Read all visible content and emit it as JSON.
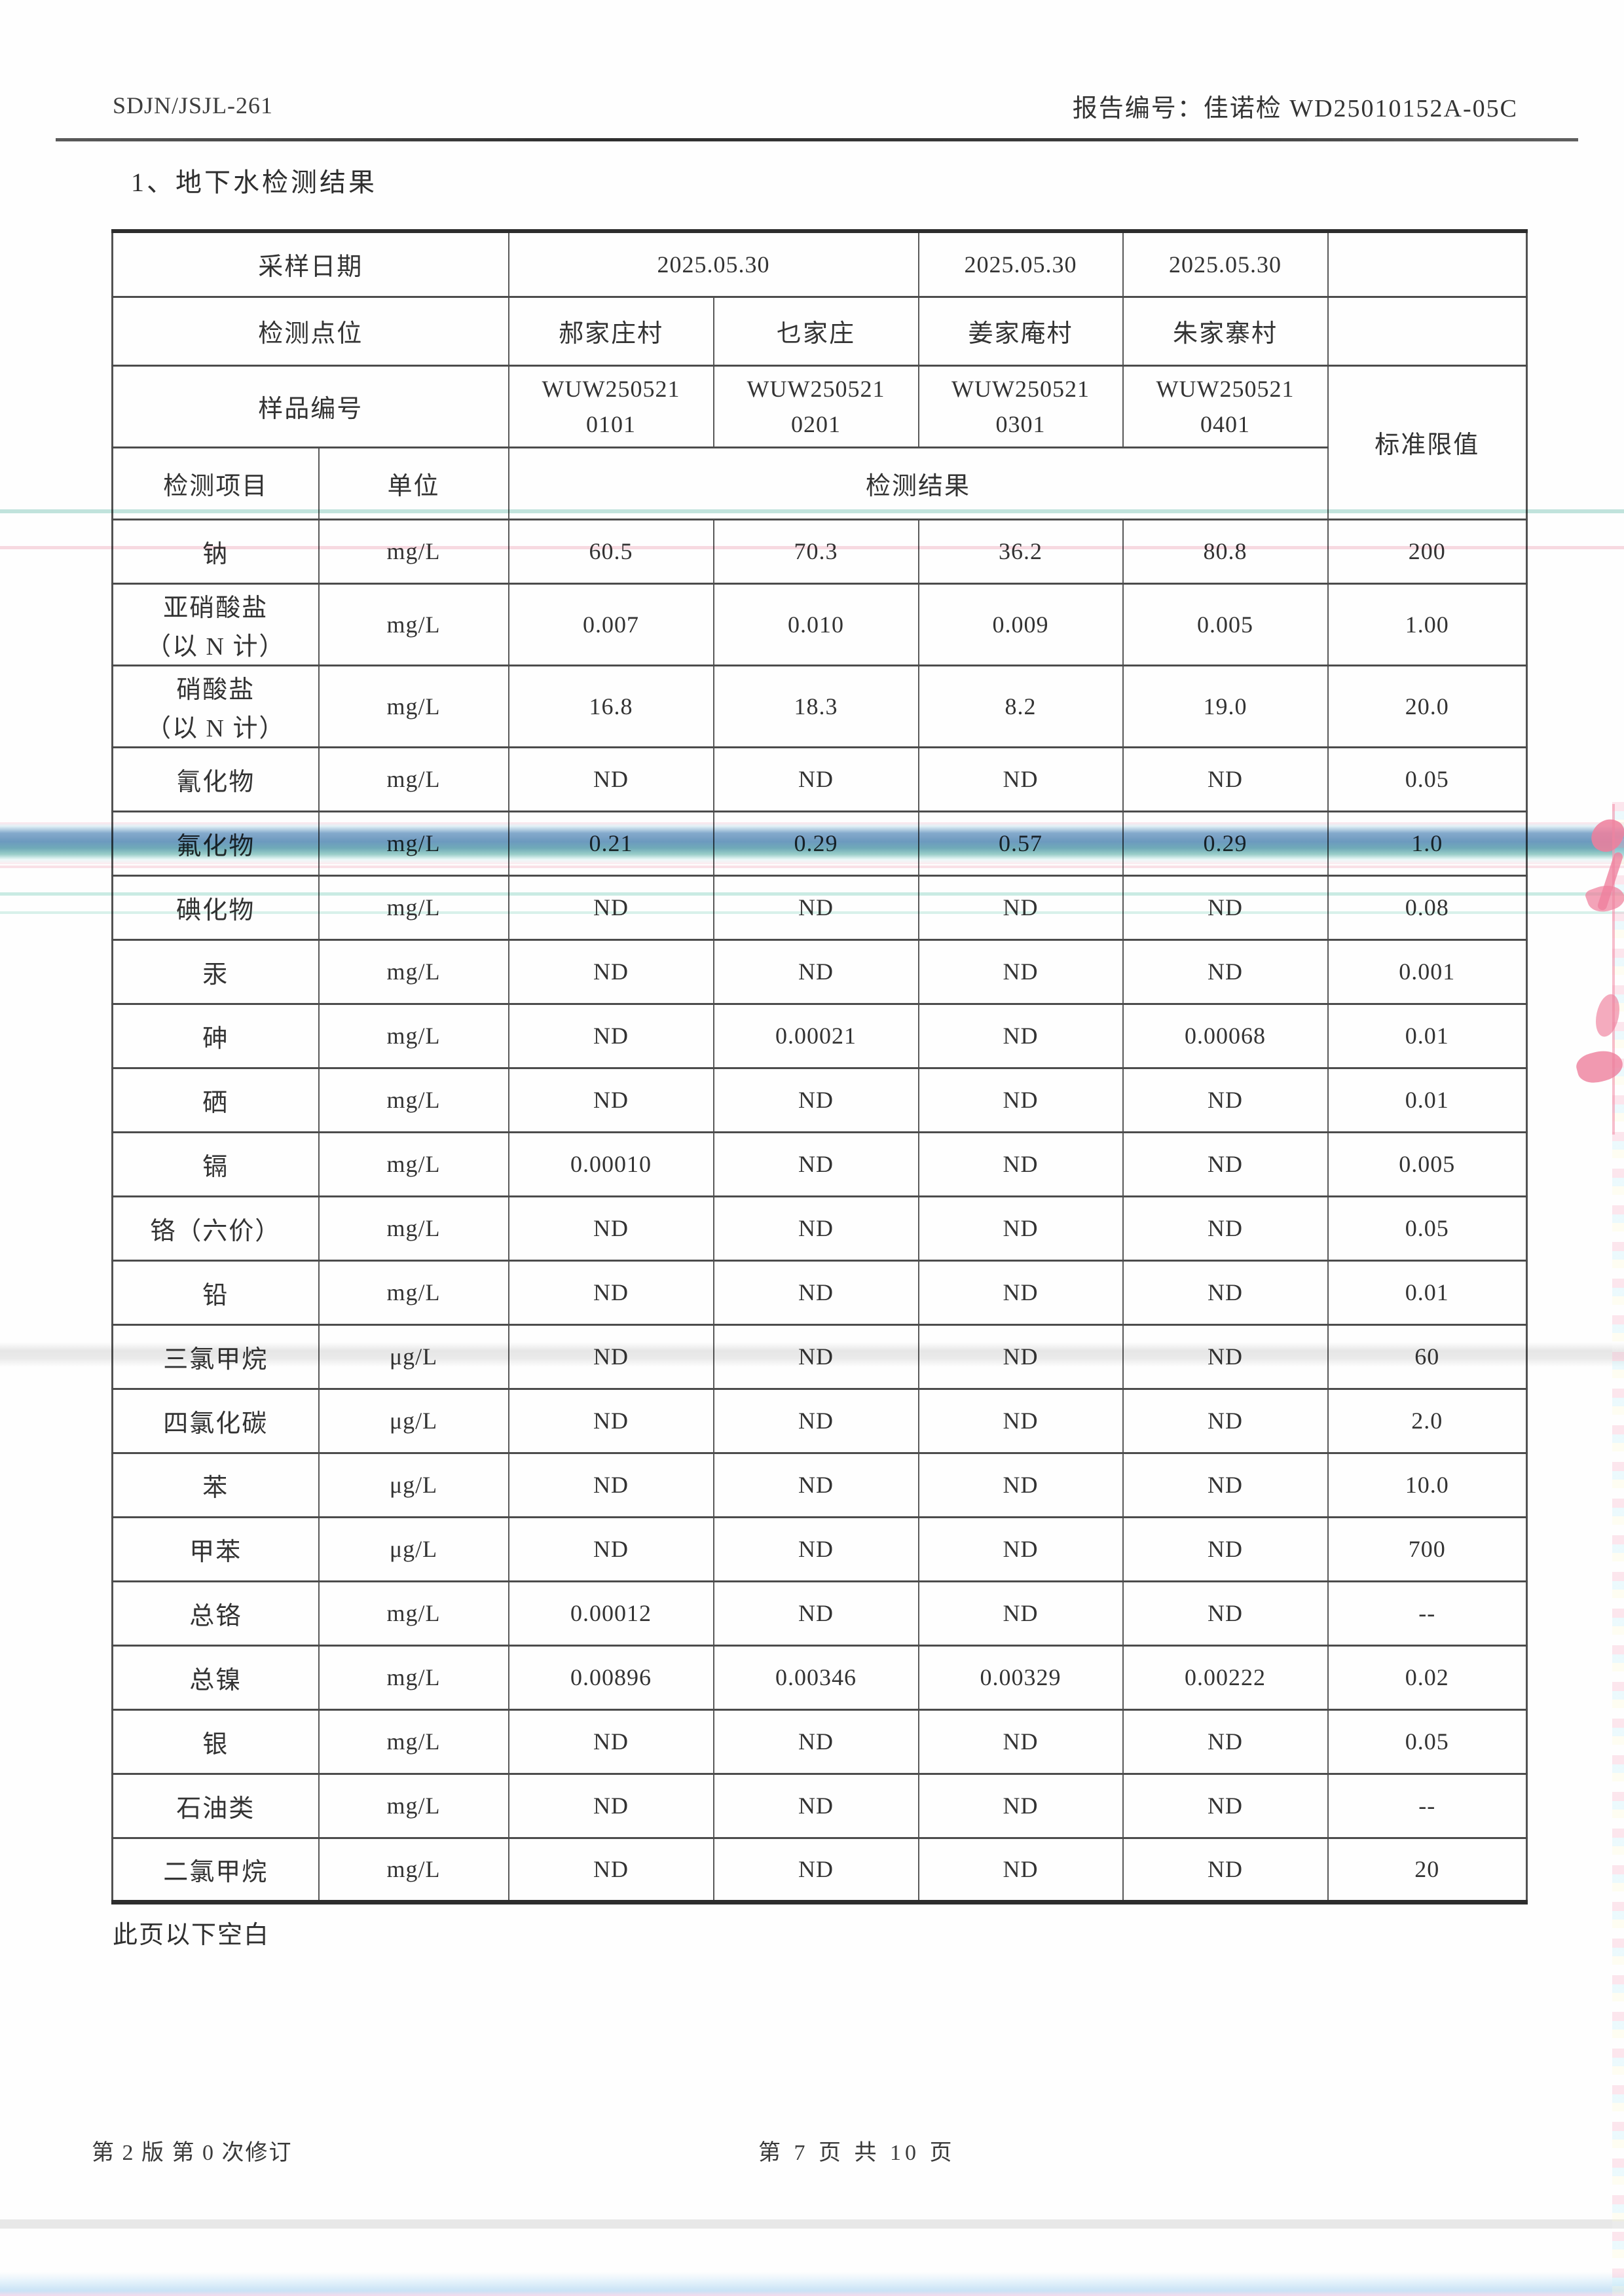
{
  "page": {
    "doc_code": "SDJN/JSJL-261",
    "report_no": "报告编号：佳诺检 WD25010152A-05C",
    "section_title": "1、地下水检测结果",
    "blank_note": "此页以下空白",
    "footer_left": "第 2 版 第 0 次修订",
    "footer_center": "第 7 页 共 10 页"
  },
  "table": {
    "header": {
      "sampling_date_label": "采样日期",
      "dates": [
        "2025.05.30",
        "2025.05.30",
        "2025.05.30"
      ],
      "point_label": "检测点位",
      "points": [
        "郝家庄村",
        "乜家庄",
        "姜家庵村",
        "朱家寨村"
      ],
      "sample_no_label": "样品编号",
      "sample_nos": [
        [
          "WUW250521",
          "0101"
        ],
        [
          "WUW250521",
          "0201"
        ],
        [
          "WUW250521",
          "0301"
        ],
        [
          "WUW250521",
          "0401"
        ]
      ],
      "item_label": "检测项目",
      "unit_label": "单位",
      "result_label": "检测结果",
      "limit_label": "标准限值"
    },
    "rows": [
      {
        "item": "钠",
        "item2": "",
        "unit": "mg/L",
        "values": [
          "60.5",
          "70.3",
          "36.2",
          "80.8"
        ],
        "limit": "200"
      },
      {
        "item": "亚硝酸盐",
        "item2": "（以 N 计）",
        "unit": "mg/L",
        "values": [
          "0.007",
          "0.010",
          "0.009",
          "0.005"
        ],
        "limit": "1.00"
      },
      {
        "item": "硝酸盐",
        "item2": "（以 N 计）",
        "unit": "mg/L",
        "values": [
          "16.8",
          "18.3",
          "8.2",
          "19.0"
        ],
        "limit": "20.0"
      },
      {
        "item": "氰化物",
        "item2": "",
        "unit": "mg/L",
        "values": [
          "ND",
          "ND",
          "ND",
          "ND"
        ],
        "limit": "0.05"
      },
      {
        "item": "氟化物",
        "item2": "",
        "unit": "mg/L",
        "values": [
          "0.21",
          "0.29",
          "0.57",
          "0.29"
        ],
        "limit": "1.0"
      },
      {
        "item": "碘化物",
        "item2": "",
        "unit": "mg/L",
        "values": [
          "ND",
          "ND",
          "ND",
          "ND"
        ],
        "limit": "0.08"
      },
      {
        "item": "汞",
        "item2": "",
        "unit": "mg/L",
        "values": [
          "ND",
          "ND",
          "ND",
          "ND"
        ],
        "limit": "0.001"
      },
      {
        "item": "砷",
        "item2": "",
        "unit": "mg/L",
        "values": [
          "ND",
          "0.00021",
          "ND",
          "0.00068"
        ],
        "limit": "0.01"
      },
      {
        "item": "硒",
        "item2": "",
        "unit": "mg/L",
        "values": [
          "ND",
          "ND",
          "ND",
          "ND"
        ],
        "limit": "0.01"
      },
      {
        "item": "镉",
        "item2": "",
        "unit": "mg/L",
        "values": [
          "0.00010",
          "ND",
          "ND",
          "ND"
        ],
        "limit": "0.005"
      },
      {
        "item": "铬（六价）",
        "item2": "",
        "unit": "mg/L",
        "values": [
          "ND",
          "ND",
          "ND",
          "ND"
        ],
        "limit": "0.05"
      },
      {
        "item": "铅",
        "item2": "",
        "unit": "mg/L",
        "values": [
          "ND",
          "ND",
          "ND",
          "ND"
        ],
        "limit": "0.01"
      },
      {
        "item": "三氯甲烷",
        "item2": "",
        "unit": "μg/L",
        "values": [
          "ND",
          "ND",
          "ND",
          "ND"
        ],
        "limit": "60"
      },
      {
        "item": "四氯化碳",
        "item2": "",
        "unit": "μg/L",
        "values": [
          "ND",
          "ND",
          "ND",
          "ND"
        ],
        "limit": "2.0"
      },
      {
        "item": "苯",
        "item2": "",
        "unit": "μg/L",
        "values": [
          "ND",
          "ND",
          "ND",
          "ND"
        ],
        "limit": "10.0"
      },
      {
        "item": "甲苯",
        "item2": "",
        "unit": "μg/L",
        "values": [
          "ND",
          "ND",
          "ND",
          "ND"
        ],
        "limit": "700"
      },
      {
        "item": "总铬",
        "item2": "",
        "unit": "mg/L",
        "values": [
          "0.00012",
          "ND",
          "ND",
          "ND"
        ],
        "limit": "--"
      },
      {
        "item": "总镍",
        "item2": "",
        "unit": "mg/L",
        "values": [
          "0.00896",
          "0.00346",
          "0.00329",
          "0.00222"
        ],
        "limit": "0.02"
      },
      {
        "item": "银",
        "item2": "",
        "unit": "mg/L",
        "values": [
          "ND",
          "ND",
          "ND",
          "ND"
        ],
        "limit": "0.05"
      },
      {
        "item": "石油类",
        "item2": "",
        "unit": "mg/L",
        "values": [
          "ND",
          "ND",
          "ND",
          "ND"
        ],
        "limit": "--"
      },
      {
        "item": "二氯甲烷",
        "item2": "",
        "unit": "mg/L",
        "values": [
          "ND",
          "ND",
          "ND",
          "ND"
        ],
        "limit": "20"
      }
    ]
  },
  "artifacts": {
    "blue_band_color": "#6092ba",
    "teal_line_color": "#a8d8ce",
    "pink_line_color": "#f3c4ce",
    "red_mark_color": "#ee7f9c"
  }
}
